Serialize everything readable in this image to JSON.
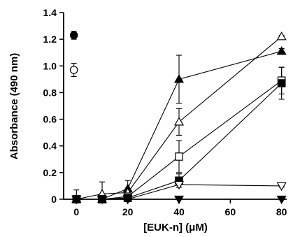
{
  "chart_data": {
    "type": "line",
    "xlabel": "[EUK-n] (μM)",
    "ylabel": "Absorbance (490 nm)",
    "xlim": [
      -5,
      82
    ],
    "ylim": [
      0,
      1.4
    ],
    "xticks": [
      0,
      20,
      40,
      60,
      80
    ],
    "yticks": [
      0,
      0.2,
      0.4,
      0.6,
      0.8,
      1.0,
      1.2,
      1.4
    ],
    "grid": false,
    "legend": "none",
    "series": [
      {
        "marker": "triangle-up-filled",
        "points": [
          {
            "x": 0,
            "y": 0.0,
            "err": 0
          },
          {
            "x": 10,
            "y": 0.0,
            "err": 0
          },
          {
            "x": 20,
            "y": 0.08,
            "err": 0.06
          },
          {
            "x": 40,
            "y": 0.9,
            "err": 0.18
          },
          {
            "x": 80,
            "y": 1.11,
            "err": 0.02
          }
        ]
      },
      {
        "marker": "triangle-up-open",
        "points": [
          {
            "x": 0,
            "y": 0.0,
            "err": 0.07
          },
          {
            "x": 10,
            "y": 0.04,
            "err": 0.09
          },
          {
            "x": 20,
            "y": 0.05,
            "err": 0.03
          },
          {
            "x": 40,
            "y": 0.58,
            "err": 0.1
          },
          {
            "x": 80,
            "y": 1.22,
            "err": 0.01
          }
        ]
      },
      {
        "marker": "square-open",
        "points": [
          {
            "x": 0,
            "y": 0.0,
            "err": 0
          },
          {
            "x": 10,
            "y": 0.0,
            "err": 0
          },
          {
            "x": 20,
            "y": 0.02,
            "err": 0.02
          },
          {
            "x": 40,
            "y": 0.32,
            "err": 0.12
          },
          {
            "x": 80,
            "y": 0.89,
            "err": 0.1
          }
        ]
      },
      {
        "marker": "square-filled",
        "points": [
          {
            "x": 0,
            "y": 0.0,
            "err": 0
          },
          {
            "x": 10,
            "y": 0.0,
            "err": 0
          },
          {
            "x": 20,
            "y": 0.01,
            "err": 0.01
          },
          {
            "x": 40,
            "y": 0.14,
            "err": 0.05
          },
          {
            "x": 80,
            "y": 0.87,
            "err": 0.12
          }
        ]
      },
      {
        "marker": "triangle-down-open",
        "points": [
          {
            "x": 0,
            "y": 0.0,
            "err": 0
          },
          {
            "x": 10,
            "y": 0.0,
            "err": 0
          },
          {
            "x": 20,
            "y": 0.0,
            "err": 0
          },
          {
            "x": 40,
            "y": 0.11,
            "err": 0.02
          },
          {
            "x": 80,
            "y": 0.1,
            "err": 0.01
          }
        ]
      },
      {
        "marker": "triangle-down-filled",
        "points": [
          {
            "x": 0,
            "y": 0.0,
            "err": 0
          },
          {
            "x": 10,
            "y": 0.0,
            "err": 0
          },
          {
            "x": 20,
            "y": 0.0,
            "err": 0
          },
          {
            "x": 40,
            "y": 0.0,
            "err": 0
          },
          {
            "x": 80,
            "y": 0.0,
            "err": 0
          }
        ]
      },
      {
        "marker": "circle-filled",
        "connect": false,
        "points": [
          {
            "x": -1,
            "y": 1.23,
            "err": 0.03
          }
        ]
      },
      {
        "marker": "circle-open",
        "connect": false,
        "points": [
          {
            "x": -1,
            "y": 0.97,
            "err": 0.05
          }
        ]
      }
    ]
  }
}
